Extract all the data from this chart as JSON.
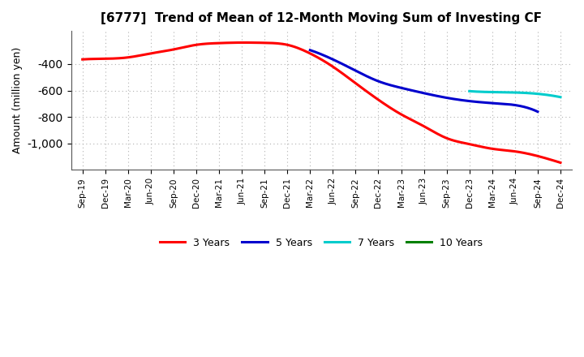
{
  "title": "[6777]  Trend of Mean of 12-Month Moving Sum of Investing CF",
  "ylabel": "Amount (million yen)",
  "ylim": [
    -1200,
    -150
  ],
  "yticks": [
    -1000,
    -800,
    -600,
    -400
  ],
  "background_color": "#ffffff",
  "plot_background": "#ffffff",
  "grid_color": "#b0b0b0",
  "legend_entries": [
    "3 Years",
    "5 Years",
    "7 Years",
    "10 Years"
  ],
  "legend_colors": [
    "#ff0000",
    "#0000cd",
    "#00cccc",
    "#008000"
  ],
  "x_labels": [
    "Sep-19",
    "Dec-19",
    "Mar-20",
    "Jun-20",
    "Sep-20",
    "Dec-20",
    "Mar-21",
    "Jun-21",
    "Sep-21",
    "Dec-21",
    "Mar-22",
    "Jun-22",
    "Sep-22",
    "Dec-22",
    "Mar-23",
    "Jun-23",
    "Sep-23",
    "Dec-23",
    "Mar-24",
    "Jun-24",
    "Sep-24",
    "Dec-24"
  ],
  "series_3y": [
    -365,
    -360,
    -350,
    -320,
    -290,
    -255,
    -242,
    -238,
    -240,
    -255,
    -320,
    -420,
    -545,
    -670,
    -780,
    -870,
    -960,
    -1005,
    -1040,
    -1060,
    -1095,
    -1145
  ],
  "series_5y": [
    null,
    null,
    null,
    null,
    null,
    null,
    null,
    null,
    null,
    null,
    -295,
    -365,
    -450,
    -530,
    -580,
    -620,
    -655,
    -680,
    -695,
    -710,
    -760,
    null
  ],
  "series_7y": [
    null,
    null,
    null,
    null,
    null,
    null,
    null,
    null,
    null,
    null,
    null,
    null,
    null,
    null,
    null,
    null,
    null,
    -605,
    -612,
    -615,
    -625,
    -650
  ],
  "series_10y": []
}
